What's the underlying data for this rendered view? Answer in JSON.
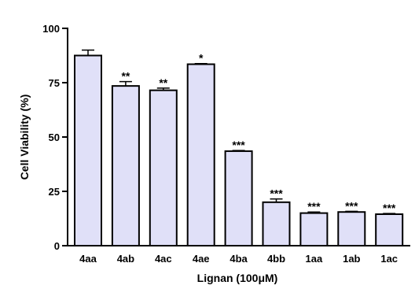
{
  "chart_data": {
    "type": "bar",
    "title": "",
    "xlabel": "Lignan (100μM)",
    "ylabel": "Cell Viability (%)",
    "ylim": [
      0,
      100
    ],
    "yticks": [
      0,
      25,
      50,
      75,
      100
    ],
    "grid": false,
    "bar_color": "#e0e0f8",
    "categories": [
      "4aa",
      "4ab",
      "4ac",
      "4ae",
      "4ba",
      "4bb",
      "1aa",
      "1ab",
      "1ac"
    ],
    "values": [
      87.5,
      73.5,
      71.5,
      83.5,
      43.5,
      20,
      15,
      15.5,
      14.5
    ],
    "errors": [
      2.5,
      2,
      1,
      0.3,
      0.3,
      1.5,
      0.5,
      0.3,
      0.3
    ],
    "significance": [
      "",
      "**",
      "**",
      "*",
      "***",
      "***",
      "***",
      "***",
      "***"
    ]
  }
}
